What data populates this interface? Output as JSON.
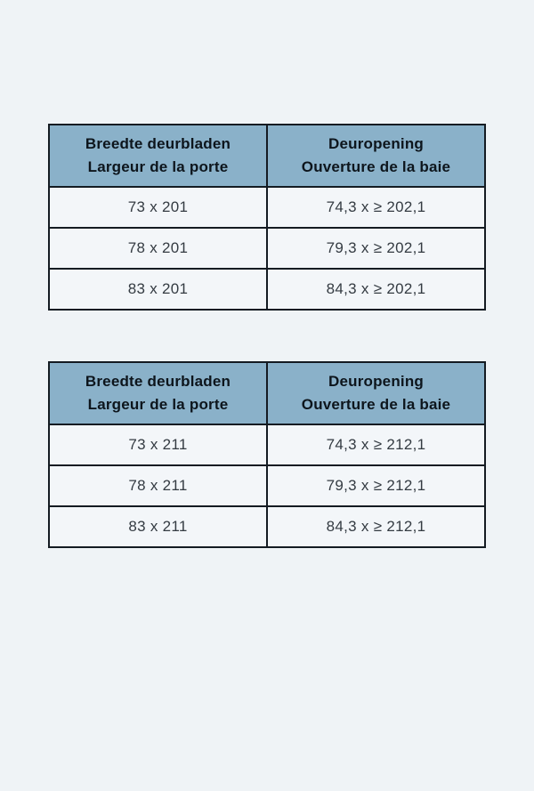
{
  "page": {
    "background_color": "#eff3f6",
    "table_header_color": "#8ab1c9",
    "table_border_color": "#141b22",
    "cell_background_color": "#f3f6f9"
  },
  "tables": [
    {
      "headers": [
        {
          "line1": "Breedte deurbladen",
          "line2": "Largeur de la porte"
        },
        {
          "line1": "Deuropening",
          "line2": "Ouverture de la baie"
        }
      ],
      "rows": [
        [
          "73 x 201",
          "74,3 x ≥ 202,1"
        ],
        [
          "78 x 201",
          "79,3 x ≥ 202,1"
        ],
        [
          "83 x 201",
          "84,3 x ≥ 202,1"
        ]
      ]
    },
    {
      "headers": [
        {
          "line1": "Breedte deurbladen",
          "line2": "Largeur de la porte"
        },
        {
          "line1": "Deuropening",
          "line2": "Ouverture de la baie"
        }
      ],
      "rows": [
        [
          "73 x 211",
          "74,3 x ≥ 212,1"
        ],
        [
          "78 x 211",
          "79,3 x ≥ 212,1"
        ],
        [
          "83 x 211",
          "84,3 x ≥ 212,1"
        ]
      ]
    }
  ]
}
